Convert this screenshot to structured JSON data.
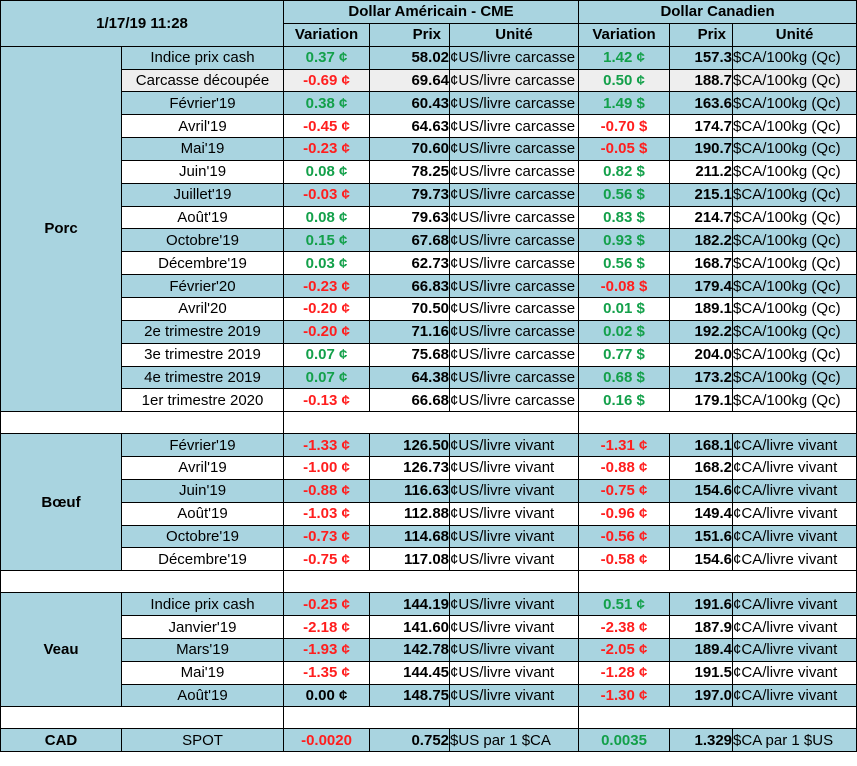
{
  "header": {
    "datetime": "1/17/19 11:28",
    "usd_title": "Dollar Américain - CME",
    "cad_title": "Dollar Canadien",
    "col_variation": "Variation",
    "col_prix": "Prix",
    "col_unite": "Unité"
  },
  "colors": {
    "header_bg": "#a9d4e0",
    "positive": "#13a04a",
    "negative": "#ff1e1e"
  },
  "porc": {
    "label": "Porc",
    "rows": [
      {
        "label": "Indice prix cash",
        "us_var": "0.37 ¢",
        "us_price": "58.02",
        "us_unit": "¢US/livre carcasse",
        "ca_var": "1.42 ¢",
        "ca_price": "157.3",
        "ca_unit": "$CA/100kg (Qc)"
      },
      {
        "label": "Carcasse découpée",
        "us_var": "-0.69 ¢",
        "us_price": "69.64",
        "us_unit": "¢US/livre carcasse",
        "ca_var": "0.50 ¢",
        "ca_price": "188.7",
        "ca_unit": "$CA/100kg (Qc)"
      },
      {
        "label": "Février'19",
        "us_var": "0.38 ¢",
        "us_price": "60.43",
        "us_unit": "¢US/livre carcasse",
        "ca_var": "1.49 $",
        "ca_price": "163.6",
        "ca_unit": "$CA/100kg (Qc)"
      },
      {
        "label": "Avril'19",
        "us_var": "-0.45 ¢",
        "us_price": "64.63",
        "us_unit": "¢US/livre carcasse",
        "ca_var": "-0.70 $",
        "ca_price": "174.7",
        "ca_unit": "$CA/100kg (Qc)"
      },
      {
        "label": "Mai'19",
        "us_var": "-0.23 ¢",
        "us_price": "70.60",
        "us_unit": "¢US/livre carcasse",
        "ca_var": "-0.05 $",
        "ca_price": "190.7",
        "ca_unit": "$CA/100kg (Qc)"
      },
      {
        "label": "Juin'19",
        "us_var": "0.08 ¢",
        "us_price": "78.25",
        "us_unit": "¢US/livre carcasse",
        "ca_var": "0.82 $",
        "ca_price": "211.2",
        "ca_unit": "$CA/100kg (Qc)"
      },
      {
        "label": "Juillet'19",
        "us_var": "-0.03 ¢",
        "us_price": "79.73",
        "us_unit": "¢US/livre carcasse",
        "ca_var": "0.56 $",
        "ca_price": "215.1",
        "ca_unit": "$CA/100kg (Qc)"
      },
      {
        "label": "Août'19",
        "us_var": "0.08 ¢",
        "us_price": "79.63",
        "us_unit": "¢US/livre carcasse",
        "ca_var": "0.83 $",
        "ca_price": "214.7",
        "ca_unit": "$CA/100kg (Qc)"
      },
      {
        "label": "Octobre'19",
        "us_var": "0.15 ¢",
        "us_price": "67.68",
        "us_unit": "¢US/livre carcasse",
        "ca_var": "0.93 $",
        "ca_price": "182.2",
        "ca_unit": "$CA/100kg (Qc)"
      },
      {
        "label": "Décembre'19",
        "us_var": "0.03 ¢",
        "us_price": "62.73",
        "us_unit": "¢US/livre carcasse",
        "ca_var": "0.56 $",
        "ca_price": "168.7",
        "ca_unit": "$CA/100kg (Qc)"
      },
      {
        "label": "Février'20",
        "us_var": "-0.23 ¢",
        "us_price": "66.83",
        "us_unit": "¢US/livre carcasse",
        "ca_var": "-0.08 $",
        "ca_price": "179.4",
        "ca_unit": "$CA/100kg (Qc)"
      },
      {
        "label": "Avril'20",
        "us_var": "-0.20 ¢",
        "us_price": "70.50",
        "us_unit": "¢US/livre carcasse",
        "ca_var": "0.01 $",
        "ca_price": "189.1",
        "ca_unit": "$CA/100kg (Qc)"
      },
      {
        "label": "2e trimestre 2019",
        "us_var": "-0.20 ¢",
        "us_price": "71.16",
        "us_unit": "¢US/livre carcasse",
        "ca_var": "0.02 $",
        "ca_price": "192.2",
        "ca_unit": "$CA/100kg (Qc)"
      },
      {
        "label": "3e trimestre 2019",
        "us_var": "0.07 ¢",
        "us_price": "75.68",
        "us_unit": "¢US/livre carcasse",
        "ca_var": "0.77 $",
        "ca_price": "204.0",
        "ca_unit": "$CA/100kg (Qc)"
      },
      {
        "label": "4e trimestre 2019",
        "us_var": "0.07 ¢",
        "us_price": "64.38",
        "us_unit": "¢US/livre carcasse",
        "ca_var": "0.68 $",
        "ca_price": "173.2",
        "ca_unit": "$CA/100kg (Qc)"
      },
      {
        "label": "1er trimestre 2020",
        "us_var": "-0.13 ¢",
        "us_price": "66.68",
        "us_unit": "¢US/livre carcasse",
        "ca_var": "0.16 $",
        "ca_price": "179.1",
        "ca_unit": "$CA/100kg (Qc)"
      }
    ]
  },
  "boeuf": {
    "label": "Bœuf",
    "rows": [
      {
        "label": "Février'19",
        "us_var": "-1.33 ¢",
        "us_price": "126.50",
        "us_unit": "¢US/livre vivant",
        "ca_var": "-1.31 ¢",
        "ca_price": "168.1",
        "ca_unit": "¢CA/livre vivant"
      },
      {
        "label": "Avril'19",
        "us_var": "-1.00 ¢",
        "us_price": "126.73",
        "us_unit": "¢US/livre vivant",
        "ca_var": "-0.88 ¢",
        "ca_price": "168.2",
        "ca_unit": "¢CA/livre vivant"
      },
      {
        "label": "Juin'19",
        "us_var": "-0.88 ¢",
        "us_price": "116.63",
        "us_unit": "¢US/livre vivant",
        "ca_var": "-0.75 ¢",
        "ca_price": "154.6",
        "ca_unit": "¢CA/livre vivant"
      },
      {
        "label": "Août'19",
        "us_var": "-1.03 ¢",
        "us_price": "112.88",
        "us_unit": "¢US/livre vivant",
        "ca_var": "-0.96 ¢",
        "ca_price": "149.4",
        "ca_unit": "¢CA/livre vivant"
      },
      {
        "label": "Octobre'19",
        "us_var": "-0.73 ¢",
        "us_price": "114.68",
        "us_unit": "¢US/livre vivant",
        "ca_var": "-0.56 ¢",
        "ca_price": "151.6",
        "ca_unit": "¢CA/livre vivant"
      },
      {
        "label": "Décembre'19",
        "us_var": "-0.75 ¢",
        "us_price": "117.08",
        "us_unit": "¢US/livre vivant",
        "ca_var": "-0.58 ¢",
        "ca_price": "154.6",
        "ca_unit": "¢CA/livre vivant"
      }
    ]
  },
  "veau": {
    "label": "Veau",
    "rows": [
      {
        "label": "Indice prix cash",
        "us_var": "-0.25 ¢",
        "us_price": "144.19",
        "us_unit": "¢US/livre vivant",
        "ca_var": "0.51 ¢",
        "ca_price": "191.6",
        "ca_unit": "¢CA/livre vivant"
      },
      {
        "label": "Janvier'19",
        "us_var": "-2.18 ¢",
        "us_price": "141.60",
        "us_unit": "¢US/livre vivant",
        "ca_var": "-2.38 ¢",
        "ca_price": "187.9",
        "ca_unit": "¢CA/livre vivant"
      },
      {
        "label": "Mars'19",
        "us_var": "-1.93 ¢",
        "us_price": "142.78",
        "us_unit": "¢US/livre vivant",
        "ca_var": "-2.05 ¢",
        "ca_price": "189.4",
        "ca_unit": "¢CA/livre vivant"
      },
      {
        "label": "Mai'19",
        "us_var": "-1.35 ¢",
        "us_price": "144.45",
        "us_unit": "¢US/livre vivant",
        "ca_var": "-1.28 ¢",
        "ca_price": "191.5",
        "ca_unit": "¢CA/livre vivant"
      },
      {
        "label": "Août'19",
        "us_var": "0.00 ¢",
        "us_price": "148.75",
        "us_unit": "¢US/livre vivant",
        "ca_var": "-1.30 ¢",
        "ca_price": "197.0",
        "ca_unit": "¢CA/livre vivant"
      }
    ]
  },
  "cad": {
    "label": "CAD",
    "row_label": "SPOT",
    "us_var": "-0.0020",
    "us_price": "0.752",
    "us_unit": "$US par 1 $CA",
    "ca_var": "0.0035",
    "ca_price": "1.329",
    "ca_unit": "$CA par 1 $US"
  }
}
